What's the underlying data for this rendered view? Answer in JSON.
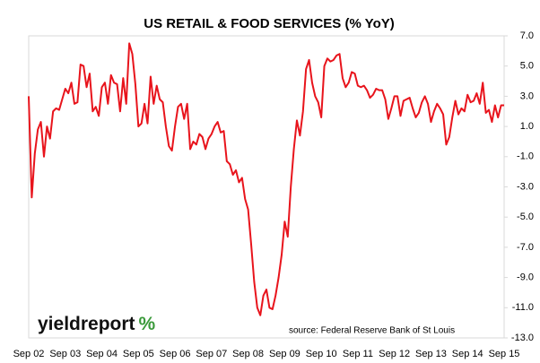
{
  "chart_data": {
    "type": "line",
    "title": "US RETAIL & FOOD SERVICES (% YoY)",
    "source": "source: Federal Reserve Bank of St Louis",
    "logo": [
      "yieldreport",
      "%"
    ],
    "categories": [
      "Sep 02",
      null,
      null,
      null,
      null,
      null,
      null,
      null,
      null,
      null,
      null,
      null,
      "Sep 03",
      null,
      null,
      null,
      null,
      null,
      null,
      null,
      null,
      null,
      null,
      null,
      "Sep 04",
      null,
      null,
      null,
      null,
      null,
      null,
      null,
      null,
      null,
      null,
      null,
      "Sep 05",
      null,
      null,
      null,
      null,
      null,
      null,
      null,
      null,
      null,
      null,
      null,
      "Sep 06",
      null,
      null,
      null,
      null,
      null,
      null,
      null,
      null,
      null,
      null,
      null,
      "Sep 07",
      null,
      null,
      null,
      null,
      null,
      null,
      null,
      null,
      null,
      null,
      null,
      "Sep 08",
      null,
      null,
      null,
      null,
      null,
      null,
      null,
      null,
      null,
      null,
      null,
      "Sep 09",
      null,
      null,
      null,
      null,
      null,
      null,
      null,
      null,
      null,
      null,
      null,
      "Sep 10",
      null,
      null,
      null,
      null,
      null,
      null,
      null,
      null,
      null,
      null,
      null,
      "Sep 11",
      null,
      null,
      null,
      null,
      null,
      null,
      null,
      null,
      null,
      null,
      null,
      "Sep 12",
      null,
      null,
      null,
      null,
      null,
      null,
      null,
      null,
      null,
      null,
      null,
      "Sep 13",
      null,
      null,
      null,
      null,
      null,
      null,
      null,
      null,
      null,
      null,
      null,
      "Sep 14",
      null,
      null,
      null,
      null,
      null,
      null,
      null,
      null,
      null,
      null,
      null,
      "Sep 15"
    ],
    "series": [
      {
        "name": "US Retail & Food Services",
        "color": "#e8141c",
        "values": [
          3.0,
          -3.7,
          -0.8,
          0.8,
          1.3,
          -1.0,
          1.0,
          0.2,
          2.0,
          2.2,
          2.1,
          2.8,
          3.5,
          3.2,
          3.9,
          2.5,
          2.6,
          5.1,
          5.0,
          3.6,
          4.5,
          2.0,
          2.3,
          1.7,
          3.6,
          3.9,
          2.5,
          4.4,
          3.9,
          3.8,
          2.0,
          4.2,
          2.5,
          6.5,
          5.8,
          3.8,
          1.0,
          1.2,
          2.5,
          1.2,
          4.3,
          2.5,
          3.7,
          2.8,
          2.6,
          1.0,
          -0.3,
          -0.6,
          1.0,
          2.3,
          2.5,
          1.5,
          2.5,
          -0.5,
          0.0,
          -0.2,
          0.5,
          0.3,
          -0.5,
          0.2,
          0.5,
          1.0,
          1.3,
          0.6,
          0.7,
          -1.3,
          -1.5,
          -2.2,
          -1.9,
          -2.7,
          -2.4,
          -3.8,
          -4.5,
          -6.8,
          -9.3,
          -11.0,
          -11.5,
          -10.2,
          -9.8,
          -11.0,
          -11.1,
          -10.2,
          -9.0,
          -7.5,
          -5.3,
          -6.3,
          -3.0,
          -0.5,
          1.4,
          0.4,
          2.0,
          4.8,
          5.4,
          3.9,
          3.0,
          2.6,
          1.6,
          5.0,
          5.5,
          5.3,
          5.4,
          5.7,
          5.8,
          4.2,
          3.6,
          3.9,
          4.6,
          4.5,
          3.7,
          3.6,
          3.7,
          3.4,
          2.9,
          3.1,
          3.5,
          3.4,
          3.4,
          2.8,
          1.5,
          2.2,
          3.0,
          3.0,
          1.7,
          2.7,
          2.8,
          2.9,
          2.2,
          1.6,
          1.9,
          2.6,
          3.0,
          2.5,
          1.3,
          2.0,
          2.5,
          2.2,
          1.8,
          -0.2,
          0.3,
          1.6,
          2.7,
          1.8,
          2.2,
          2.0,
          3.1,
          2.6,
          2.7,
          3.2,
          2.5,
          3.9,
          1.9,
          2.1,
          1.3,
          2.4,
          1.6,
          2.4,
          2.4
        ]
      }
    ],
    "ylim": [
      -13,
      7
    ],
    "yticks": [
      {
        "value": 7,
        "label": "7.0"
      },
      {
        "value": 5,
        "label": "5.0"
      },
      {
        "value": 3,
        "label": "3.0"
      },
      {
        "value": 1,
        "label": "1.0"
      },
      {
        "value": -1,
        "label": "-1.0"
      },
      {
        "value": -3,
        "label": "-3.0"
      },
      {
        "value": -5,
        "label": "-5.0"
      },
      {
        "value": -7,
        "label": "-7.0"
      },
      {
        "value": -9,
        "label": "-9.0"
      },
      {
        "value": -11,
        "label": "-11.0"
      },
      {
        "value": -13,
        "label": "-13.0"
      }
    ],
    "grid": false
  }
}
